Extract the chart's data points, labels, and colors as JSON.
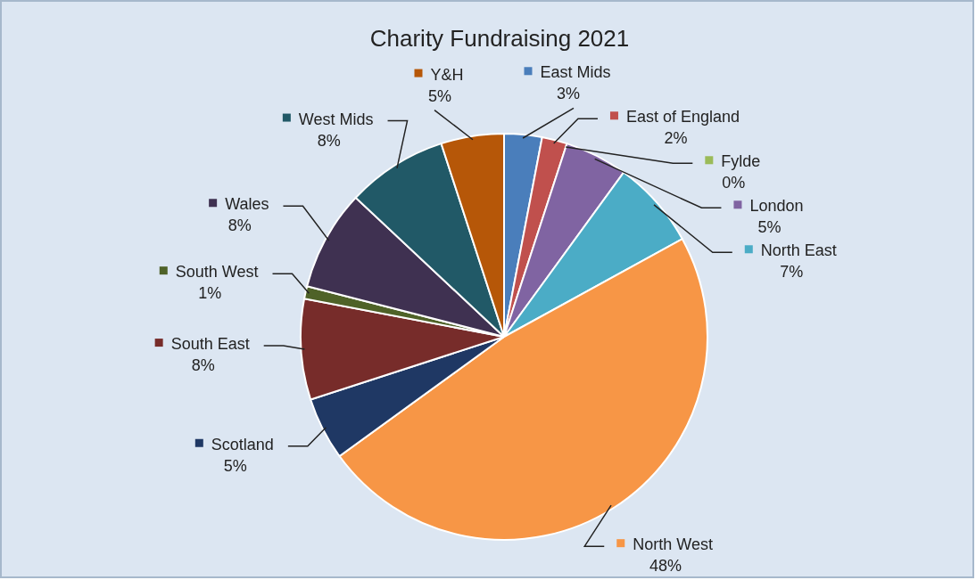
{
  "chart_data": {
    "type": "pie",
    "title": "Charity Fundraising 2021",
    "categories": [
      "East Mids",
      "East of England",
      "Fylde",
      "London",
      "North East",
      "North West",
      "Scotland",
      "South East",
      "South West",
      "Wales",
      "West Mids",
      "Y&H"
    ],
    "values": [
      3,
      2,
      0,
      5,
      7,
      48,
      5,
      8,
      1,
      8,
      8,
      5
    ],
    "value_labels": [
      "3%",
      "2%",
      "0%",
      "5%",
      "7%",
      "48%",
      "5%",
      "8%",
      "1%",
      "8%",
      "8%",
      "5%"
    ],
    "legend": "right",
    "colors": [
      "#4a7ebb",
      "#c0504d",
      "#9bbb59",
      "#8064a2",
      "#4bacc6",
      "#f79646",
      "#1f3864",
      "#772c2a",
      "#4f6228",
      "#3f3151",
      "#215967",
      "#b65708"
    ]
  }
}
